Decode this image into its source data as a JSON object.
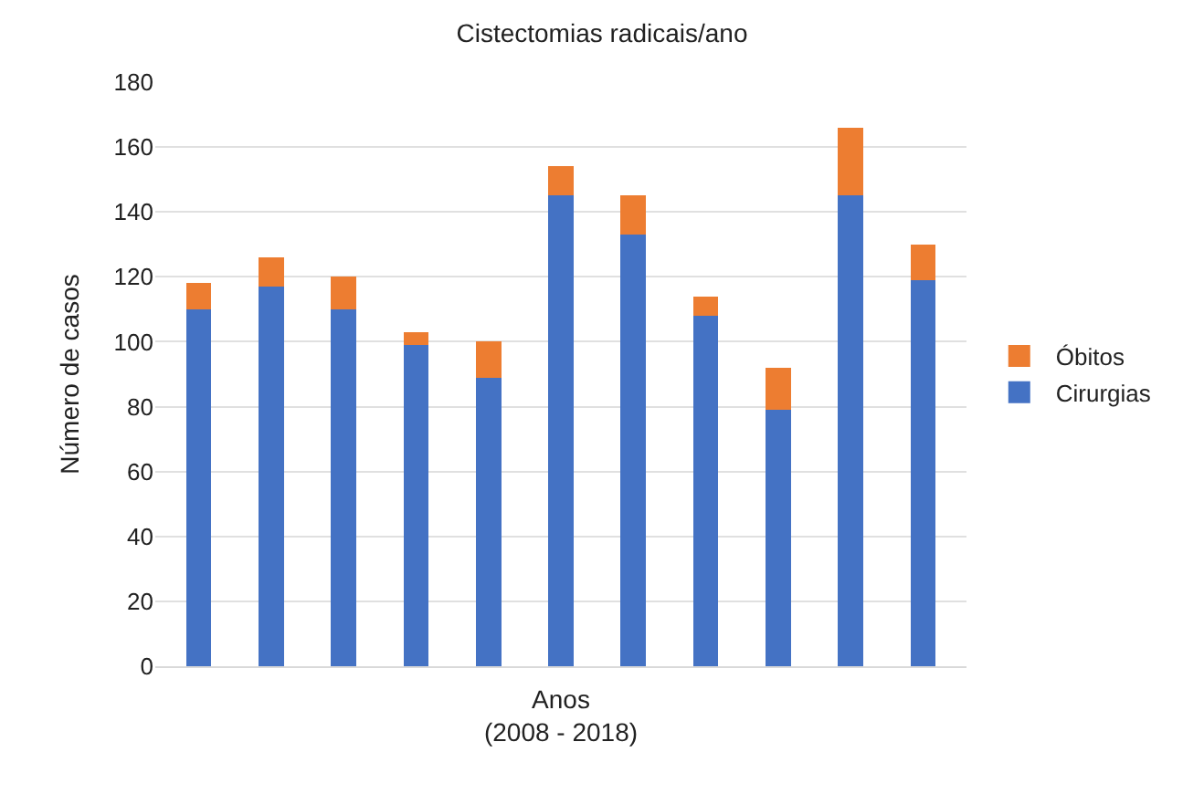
{
  "chart_data": {
    "type": "bar",
    "title": "Cistectomias radicais/ano",
    "xlabel": "Anos\n(2008 - 2018)",
    "ylabel": "Número de casos",
    "categories": [
      null,
      null,
      null,
      null,
      null,
      null,
      null,
      null,
      null,
      null,
      null
    ],
    "stacked": true,
    "series": [
      {
        "name": "Cirurgias",
        "color": "#4472c4",
        "values": [
          110,
          117,
          110,
          99,
          89,
          145,
          133,
          108,
          79,
          145,
          119
        ]
      },
      {
        "name": "Óbitos",
        "color": "#ed7d31",
        "values": [
          8,
          9,
          10,
          4,
          11,
          9,
          12,
          6,
          13,
          21,
          11
        ]
      }
    ],
    "ylim": [
      0,
      180
    ],
    "yticks": [
      0,
      20,
      40,
      60,
      80,
      100,
      120,
      140,
      160,
      180
    ],
    "grid": "y",
    "legend": "right"
  }
}
